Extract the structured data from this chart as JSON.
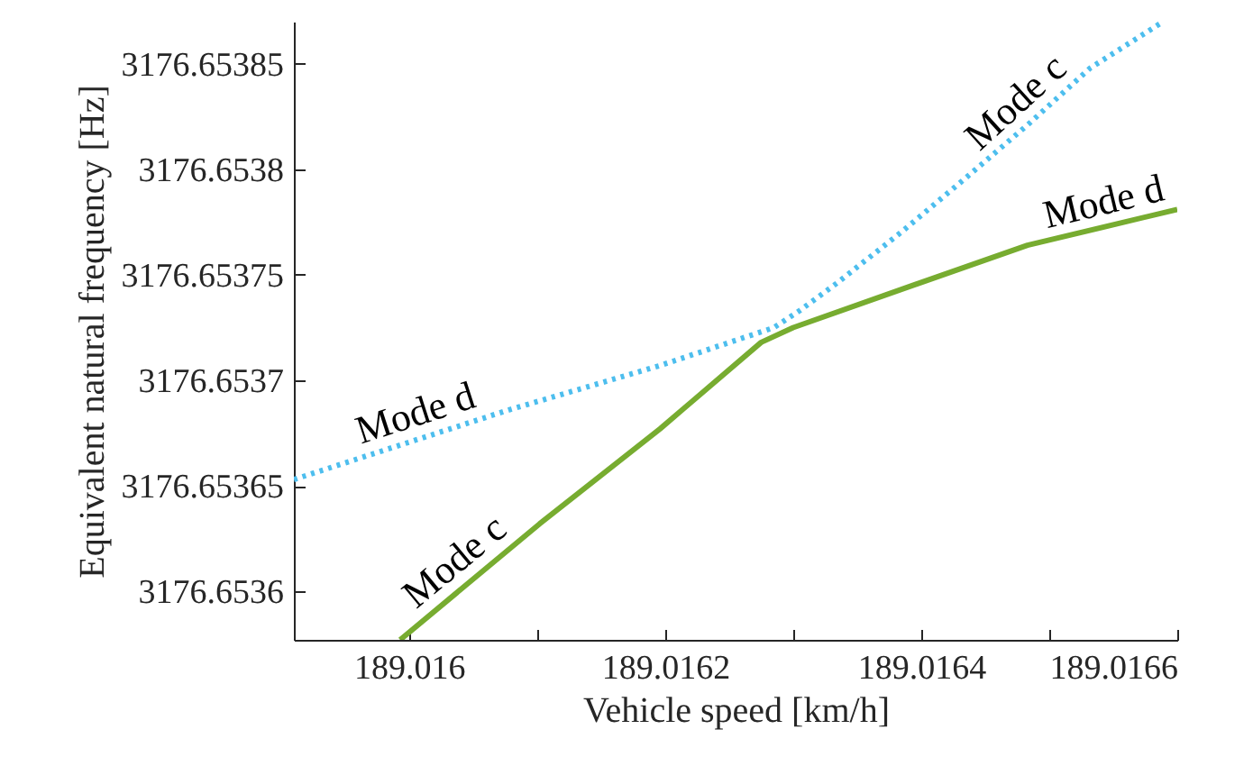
{
  "chart_data": {
    "type": "line",
    "xlabel": "Vehicle speed [km/h]",
    "ylabel": "Equivalent natural frequency [Hz]",
    "xlim": [
      189.01591,
      189.0166
    ],
    "ylim": [
      3176.653577,
      3176.65387
    ],
    "xticks": [
      189.016,
      {
        "value": 189.0161,
        "label": null
      },
      189.0162,
      {
        "value": 189.0163,
        "label": null
      },
      189.0164,
      {
        "value": 189.0165,
        "label": null
      },
      189.0166
    ],
    "yticks": [
      3176.6536,
      3176.65365,
      3176.6537,
      3176.65375,
      3176.6538,
      3176.65385
    ],
    "grid": false,
    "series": [
      {
        "color": "#4dbeee",
        "line_style": "dotted",
        "x": [
          189.01591,
          189.016078,
          189.016196,
          189.016285,
          189.016305,
          189.016334,
          189.016384,
          189.016433,
          189.016483,
          189.016532,
          189.016589
        ],
        "values": [
          3176.653653,
          3176.653686,
          3176.653707,
          3176.653725,
          3176.653733,
          3176.653746,
          3176.65377,
          3176.653795,
          3176.653821,
          3176.653848,
          3176.65387
        ]
      },
      {
        "color": "#77ac30",
        "line_style": "solid",
        "x": [
          189.015993,
          189.016102,
          189.016196,
          189.016275,
          189.0163,
          189.016384,
          189.016483,
          189.0166
        ],
        "values": [
          3176.653577,
          3176.653632,
          3176.653677,
          3176.653718,
          3176.653725,
          3176.653743,
          3176.653764,
          3176.653781
        ]
      }
    ],
    "annotations": [
      {
        "text": "Mode d",
        "x": 189.016011,
        "y": 3176.653673
      },
      {
        "text": "Mode c",
        "x": 189.016048,
        "y": 3176.653605
      },
      {
        "text": "Mode c",
        "x": 189.016487,
        "y": 3176.653823
      },
      {
        "text": "Mode d",
        "x": 189.016547,
        "y": 3176.653773
      }
    ]
  }
}
